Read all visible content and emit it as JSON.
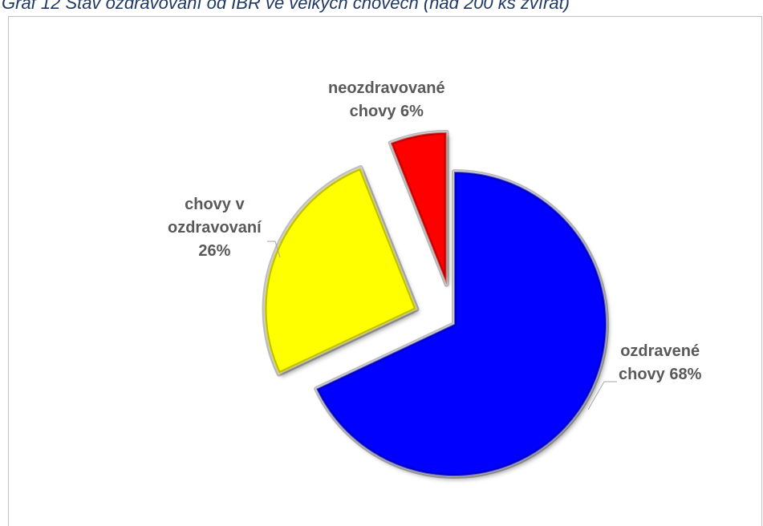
{
  "caption": "Graf 12 Stav ozdravování od IBR ve velkých chovech (nad 200 ks zvířat)",
  "chart_data": {
    "type": "pie",
    "start_angle_deg": 0,
    "direction": "clockwise",
    "slices": [
      {
        "label_lines": [
          "ozdravené",
          "chovy 68%"
        ],
        "value": 68,
        "color": "#0000ff",
        "exploded": false
      },
      {
        "label_lines": [
          "chovy v",
          "ozdravovaní",
          "26%"
        ],
        "value": 26,
        "color": "#ffff00",
        "exploded": true
      },
      {
        "label_lines": [
          "neozdravované",
          "chovy 6%"
        ],
        "value": 6,
        "color": "#ff0000",
        "exploded": true
      }
    ],
    "legend": "none",
    "style": "3d-bevel"
  }
}
